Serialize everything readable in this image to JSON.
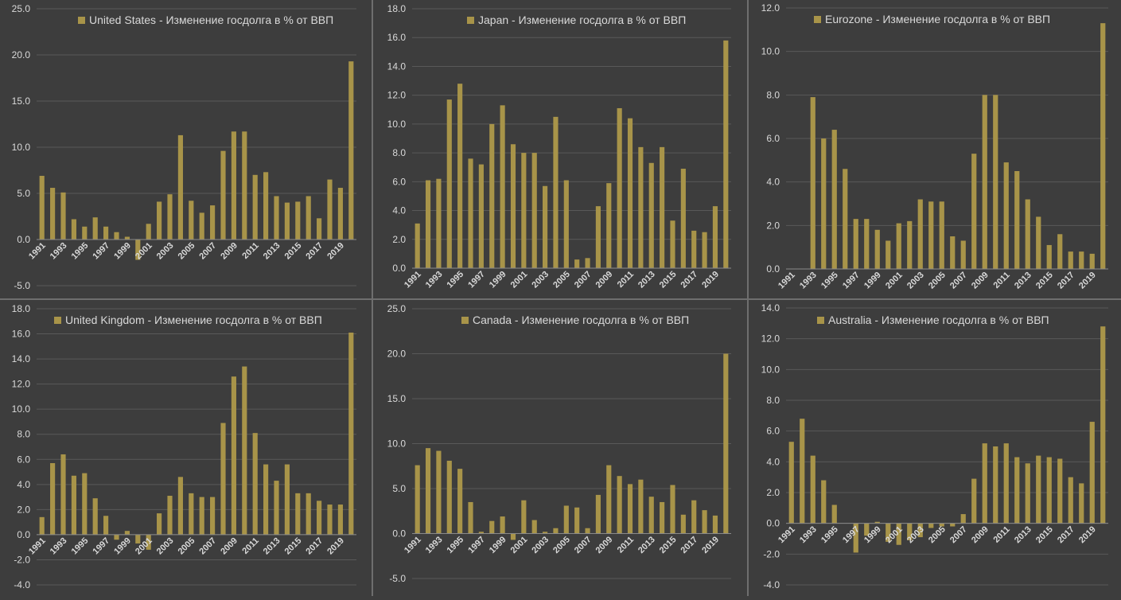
{
  "charts": [
    {
      "type": "bar",
      "title": "United States - Изменение госдолга в % от ВВП",
      "legend_position": "top",
      "ylim": [
        -5,
        25
      ],
      "ystep": 5,
      "y_decimals": 1,
      "x_start": 1991,
      "x_tick_step": 2,
      "bar_color": "#a89449",
      "values": [
        6.9,
        5.6,
        5.1,
        2.2,
        1.4,
        2.4,
        1.4,
        0.8,
        0.3,
        -2.2,
        1.7,
        4.1,
        4.9,
        11.3,
        4.2,
        2.9,
        3.7,
        9.6,
        11.7,
        11.7,
        7.0,
        7.3,
        4.7,
        4.0,
        4.1,
        4.7,
        2.3,
        6.5,
        5.6,
        19.3
      ]
    },
    {
      "type": "bar",
      "title": "Japan - Изменение госдолга в % от ВВП",
      "legend_position": "top",
      "ylim": [
        0,
        18
      ],
      "ystep": 2,
      "y_decimals": 1,
      "x_start": 1991,
      "x_tick_step": 2,
      "bar_color": "#a89449",
      "values": [
        3.1,
        6.1,
        6.2,
        11.7,
        12.8,
        7.6,
        7.2,
        10.0,
        11.3,
        8.6,
        8.0,
        8.0,
        5.7,
        10.5,
        6.1,
        0.6,
        0.7,
        4.3,
        5.9,
        11.1,
        10.4,
        8.4,
        7.3,
        8.4,
        3.3,
        6.9,
        2.6,
        2.5,
        4.3,
        15.8
      ]
    },
    {
      "type": "bar",
      "title": "Eurozone  - Изменение госдолга в % от ВВП",
      "legend_position": "top",
      "ylim": [
        0,
        12
      ],
      "ystep": 2,
      "y_decimals": 1,
      "x_start": 1991,
      "x_tick_step": 2,
      "bar_color": "#a89449",
      "values": [
        0,
        0,
        7.9,
        6.0,
        6.4,
        4.6,
        2.3,
        2.3,
        1.8,
        1.3,
        2.1,
        2.2,
        3.2,
        3.1,
        3.1,
        1.5,
        1.3,
        5.3,
        8.0,
        8.0,
        4.9,
        4.5,
        3.2,
        2.4,
        1.1,
        1.6,
        0.8,
        0.8,
        0.7,
        11.3
      ]
    },
    {
      "type": "bar",
      "title": "United Kingdom - Изменение госдолга в % от ВВП",
      "legend_position": "top",
      "ylim": [
        -4,
        18
      ],
      "ystep": 2,
      "y_decimals": 1,
      "x_start": 1991,
      "x_tick_step": 2,
      "bar_color": "#a89449",
      "values": [
        1.4,
        5.7,
        6.4,
        4.7,
        4.9,
        2.9,
        1.5,
        -0.4,
        0.3,
        -0.7,
        -1.2,
        1.7,
        3.1,
        4.6,
        3.3,
        3.0,
        3.0,
        8.9,
        12.6,
        13.4,
        8.1,
        5.6,
        4.3,
        5.6,
        3.3,
        3.3,
        2.7,
        2.4,
        2.4,
        16.1
      ]
    },
    {
      "type": "bar",
      "title": "Canada - Изменение госдолга в % от ВВП",
      "legend_position": "top",
      "ylim": [
        -5,
        25
      ],
      "ystep": 5,
      "y_decimals": 1,
      "x_start": 1991,
      "x_tick_step": 2,
      "bar_color": "#a89449",
      "values": [
        7.6,
        9.5,
        9.2,
        8.1,
        7.2,
        3.5,
        0.2,
        1.4,
        1.9,
        -0.7,
        3.7,
        1.5,
        0.2,
        0.6,
        3.1,
        2.9,
        0.6,
        4.3,
        7.6,
        6.4,
        5.5,
        6.0,
        4.1,
        3.5,
        5.4,
        2.1,
        3.7,
        2.6,
        2.0,
        20.0
      ]
    },
    {
      "type": "bar",
      "title": "Australia - Изменение госдолга в % от ВВП",
      "legend_position": "top",
      "ylim": [
        -4,
        14
      ],
      "ystep": 2,
      "y_decimals": 1,
      "x_start": 1991,
      "x_tick_step": 2,
      "bar_color": "#a89449",
      "values": [
        5.3,
        6.8,
        4.4,
        2.8,
        1.2,
        0,
        -1.9,
        -0.8,
        0.1,
        -1.2,
        -1.4,
        -1.1,
        -0.9,
        -0.3,
        -0.2,
        -0.2,
        0.6,
        2.9,
        5.2,
        5.0,
        5.2,
        4.3,
        3.9,
        4.4,
        4.3,
        4.2,
        3.0,
        2.6,
        6.6,
        12.8
      ]
    }
  ],
  "style": {
    "background": "#3d3d3d",
    "grid_color": "#595959",
    "axis_color": "#8a8a8a",
    "text_color": "#d9d9d9",
    "divider_color": "#6e6e6e"
  }
}
